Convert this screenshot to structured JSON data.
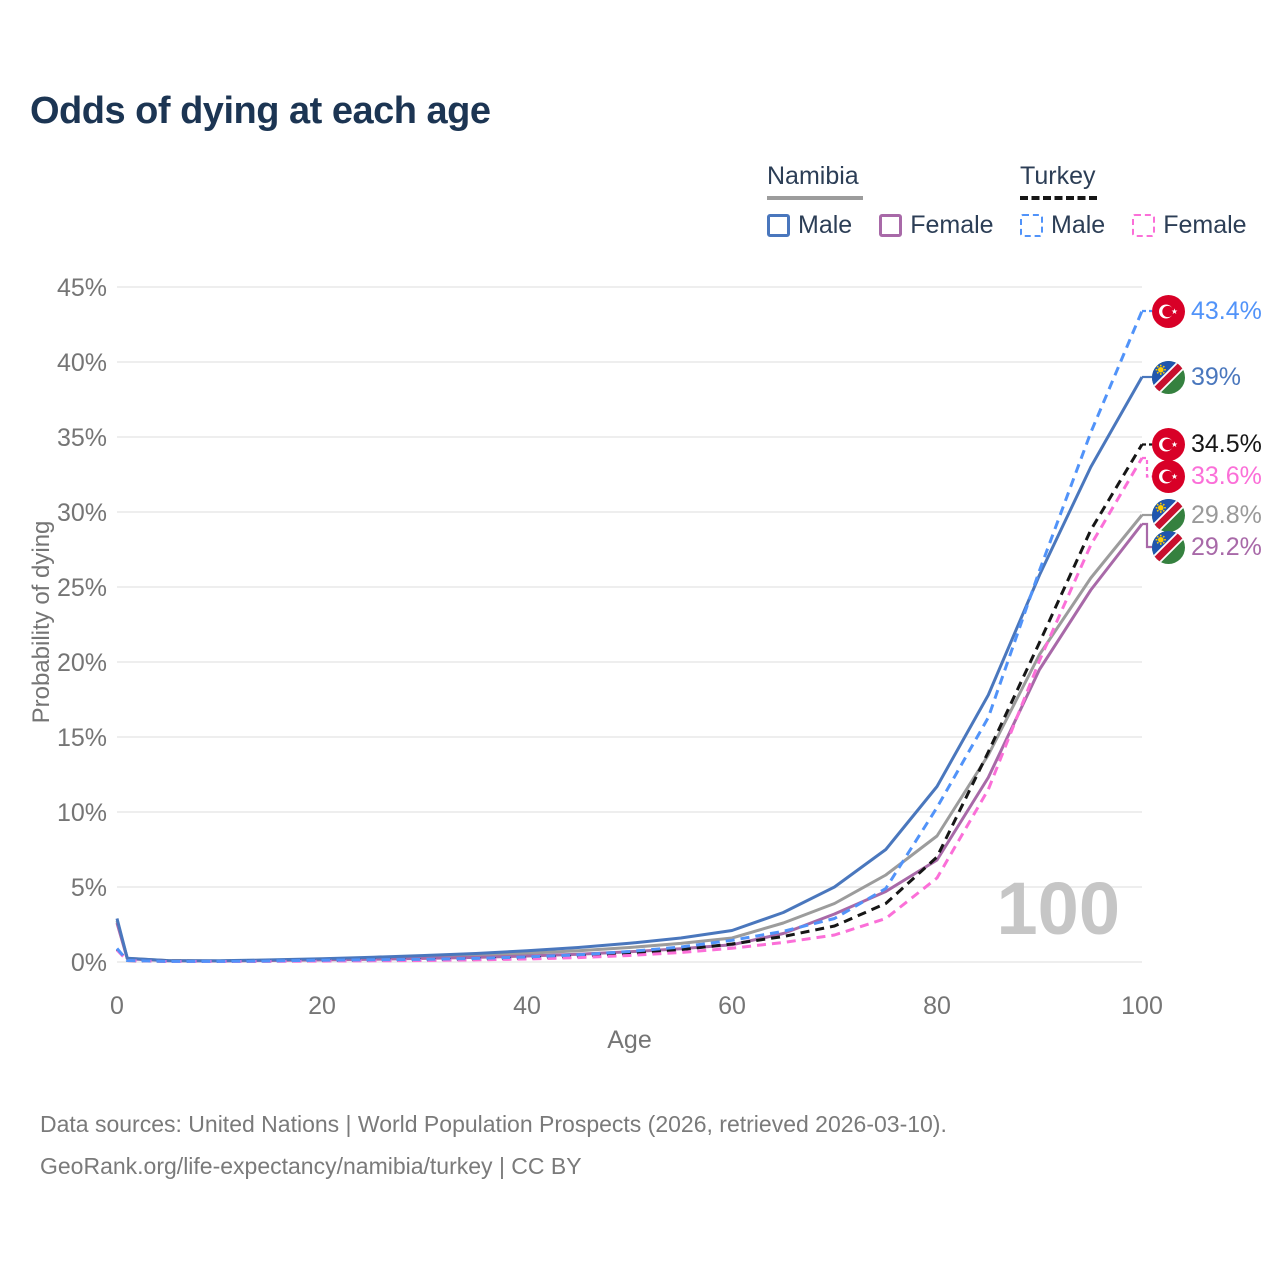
{
  "title": "Odds of dying at each age",
  "legend": {
    "groups": [
      {
        "label": "Namibia",
        "line_style": "solid",
        "line_color": "#9c9c9c",
        "items": [
          {
            "label": "Male",
            "color": "#4a77bd",
            "dashed": false
          },
          {
            "label": "Female",
            "color": "#a869a8",
            "dashed": false
          }
        ]
      },
      {
        "label": "Turkey",
        "line_style": "dashed",
        "line_color": "#161616",
        "items": [
          {
            "label": "Male",
            "color": "#5193f9",
            "dashed": true
          },
          {
            "label": "Female",
            "color": "#fb6fd8",
            "dashed": true
          }
        ]
      }
    ]
  },
  "chart_data": {
    "type": "line",
    "title": "Odds of dying at each age",
    "xlabel": "Age",
    "ylabel": "Probability of dying",
    "xlim": [
      0,
      100
    ],
    "ylim": [
      0,
      45
    ],
    "x_ticks": [
      0,
      20,
      40,
      60,
      80,
      100
    ],
    "y_ticks_pct": [
      0,
      5,
      10,
      15,
      20,
      25,
      30,
      35,
      40,
      45
    ],
    "grid": "horizontal",
    "legend_position": "top-right",
    "watermark_age": "100",
    "ages": [
      0,
      1,
      5,
      10,
      15,
      20,
      25,
      30,
      35,
      40,
      45,
      50,
      55,
      60,
      65,
      70,
      75,
      80,
      85,
      90,
      95,
      100
    ],
    "series": [
      {
        "name": "Namibia",
        "color": "#9c9c9c",
        "dashed": false,
        "flag": "namibia",
        "end_label": "29.8%",
        "label_color": "#9a9a9a",
        "values": [
          2.75,
          0.24,
          0.09,
          0.07,
          0.12,
          0.18,
          0.25,
          0.34,
          0.44,
          0.58,
          0.75,
          0.97,
          1.24,
          1.6,
          2.6,
          3.9,
          5.8,
          8.4,
          13.8,
          20.5,
          25.6,
          29.8
        ]
      },
      {
        "name": "Namibia Female",
        "color": "#a869a8",
        "dashed": false,
        "flag": "namibia",
        "end_label": "29.2%",
        "label_color": "#a869a8",
        "values": [
          2.6,
          0.22,
          0.08,
          0.07,
          0.1,
          0.14,
          0.18,
          0.24,
          0.31,
          0.4,
          0.52,
          0.68,
          0.88,
          1.15,
          1.9,
          3.2,
          4.7,
          6.8,
          12.3,
          19.5,
          24.8,
          29.2
        ]
      },
      {
        "name": "Namibia Male",
        "color": "#4a77bd",
        "dashed": false,
        "flag": "namibia",
        "end_label": "39%",
        "label_color": "#4a77bd",
        "values": [
          2.9,
          0.25,
          0.09,
          0.08,
          0.14,
          0.22,
          0.32,
          0.43,
          0.57,
          0.75,
          0.97,
          1.25,
          1.6,
          2.1,
          3.3,
          5.0,
          7.5,
          11.7,
          17.8,
          25.8,
          33.0,
          39.0
        ]
      },
      {
        "name": "Turkey",
        "color": "#161616",
        "dashed": true,
        "flag": "turkey",
        "end_label": "34.5%",
        "label_color": "#161616",
        "values": [
          0.85,
          0.1,
          0.04,
          0.03,
          0.06,
          0.09,
          0.12,
          0.14,
          0.19,
          0.27,
          0.39,
          0.57,
          0.82,
          1.2,
          1.7,
          2.4,
          3.9,
          7.0,
          14.0,
          21.3,
          28.8,
          34.5
        ]
      },
      {
        "name": "Turkey Female",
        "color": "#fb6fd8",
        "dashed": true,
        "flag": "turkey",
        "end_label": "33.6%",
        "label_color": "#fb6fd8",
        "values": [
          0.8,
          0.09,
          0.03,
          0.03,
          0.04,
          0.06,
          0.08,
          0.1,
          0.14,
          0.2,
          0.29,
          0.43,
          0.63,
          0.92,
          1.3,
          1.8,
          2.9,
          5.6,
          11.5,
          20.1,
          27.8,
          33.6
        ]
      },
      {
        "name": "Turkey Male",
        "color": "#5193f9",
        "dashed": true,
        "flag": "turkey",
        "end_label": "43.4%",
        "label_color": "#5193f9",
        "values": [
          0.9,
          0.1,
          0.04,
          0.04,
          0.07,
          0.12,
          0.15,
          0.18,
          0.24,
          0.33,
          0.48,
          0.7,
          1.0,
          1.45,
          2.05,
          2.9,
          4.9,
          10.3,
          16.3,
          26.1,
          35.3,
          43.4
        ]
      }
    ],
    "flag_colors": {
      "turkey_red": "#d80027",
      "namibia_blue": "#2056ae",
      "namibia_green": "#35813f",
      "namibia_red": "#c8102e",
      "namibia_sun": "#ffcd00"
    }
  },
  "footer": {
    "line1": "Data sources: United Nations | World Population Prospects (2026, retrieved 2026-03-10).",
    "line2": "GeoRank.org/life-expectancy/namibia/turkey | CC BY"
  }
}
